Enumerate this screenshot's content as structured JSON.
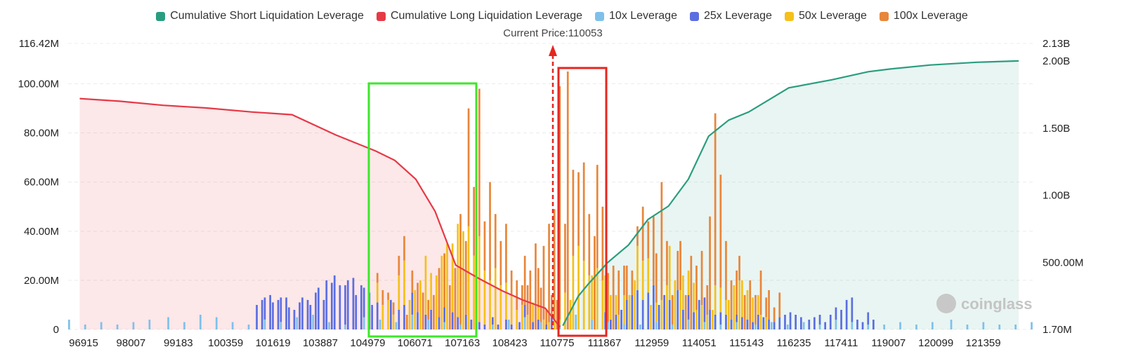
{
  "legend": [
    {
      "label": "Cumulative Short Liquidation Leverage",
      "color": "#2a9d7f"
    },
    {
      "label": "Cumulative Long Liquidation Leverage",
      "color": "#e63946"
    },
    {
      "label": "10x Leverage",
      "color": "#7fc0ea"
    },
    {
      "label": "25x Leverage",
      "color": "#5b6ee1"
    },
    {
      "label": "50x Leverage",
      "color": "#f5c01a"
    },
    {
      "label": "100x Leverage",
      "color": "#e8863a"
    }
  ],
  "watermark": "coinglass",
  "chart_data": {
    "type": "bar",
    "current_price_label": "Current Price:110053",
    "current_price": 110053,
    "x_ticks": [
      "96915",
      "98007",
      "99183",
      "100359",
      "101619",
      "103887",
      "104979",
      "106071",
      "107163",
      "108423",
      "110775",
      "111867",
      "112959",
      "114051",
      "115143",
      "116235",
      "117411",
      "119007",
      "120099",
      "121359"
    ],
    "y_left": {
      "ticks": [
        "0",
        "20.00M",
        "40.00M",
        "60.00M",
        "80.00M",
        "100.00M",
        "116.42M"
      ],
      "range": [
        0,
        116.42
      ]
    },
    "y_right": {
      "ticks": [
        "1.70M",
        "500.00M",
        "1.00B",
        "1.50B",
        "2.00B",
        "2.13B"
      ],
      "range": [
        0.0017,
        2.13
      ]
    },
    "bars_10x": [
      4,
      2,
      3,
      2,
      3,
      4,
      5,
      3,
      6,
      5,
      3,
      2,
      4,
      3,
      5,
      6,
      3,
      2,
      5,
      4,
      3,
      6,
      4,
      3,
      2,
      3,
      2,
      4,
      5,
      3,
      2,
      6,
      4,
      3,
      2,
      2,
      3,
      2,
      4,
      3,
      2,
      3,
      2,
      3,
      2,
      3,
      2,
      4,
      3,
      2,
      2,
      3,
      2,
      3,
      4,
      2,
      3,
      2,
      2,
      3
    ],
    "bars_25x": [
      10,
      12,
      9,
      14,
      11,
      12,
      10,
      13,
      9,
      8,
      11,
      13,
      12,
      10,
      15,
      17,
      12,
      20,
      19,
      22,
      18,
      16,
      20,
      21,
      14,
      18,
      12,
      15,
      10,
      11,
      12,
      8,
      10,
      9,
      7,
      6,
      8,
      5,
      6,
      7,
      5,
      6,
      4,
      3,
      2,
      3,
      2,
      4,
      2,
      3,
      5,
      3,
      4,
      2,
      5,
      7,
      4,
      6,
      8,
      12,
      14,
      16,
      12,
      15,
      18,
      10,
      14,
      12,
      16,
      8,
      10,
      7,
      12,
      10,
      8,
      6,
      5,
      6,
      4,
      3,
      5,
      4,
      3,
      6,
      5,
      4,
      3,
      5,
      6,
      7,
      6,
      5,
      4,
      5,
      4,
      3,
      6,
      5,
      8,
      12,
      10,
      4,
      3,
      5,
      4
    ],
    "bars_50x": [
      8,
      10,
      12,
      6,
      14,
      18,
      12,
      16,
      20,
      24,
      15,
      22,
      30,
      35,
      28,
      38,
      40,
      42,
      30,
      35,
      22,
      20,
      25,
      18,
      15,
      12,
      8,
      10,
      6,
      8,
      5,
      4,
      3,
      4,
      2,
      5,
      10,
      12,
      30,
      34,
      28,
      22,
      18,
      25,
      20,
      15,
      10,
      8,
      6,
      12,
      14,
      20,
      18,
      16,
      14,
      10,
      8,
      12,
      18,
      22,
      20,
      16,
      14,
      10,
      12,
      8,
      10,
      6,
      8,
      12,
      10,
      6,
      12,
      18,
      20,
      15,
      12,
      10,
      8,
      6,
      5
    ],
    "bars_100x": [
      4,
      6,
      3,
      5,
      8,
      10,
      6,
      9,
      12,
      15,
      8,
      14,
      20,
      22,
      18,
      25,
      45,
      30,
      48,
      28,
      60,
      20,
      40,
      22,
      18,
      24,
      10,
      12,
      8,
      12,
      16,
      10,
      14,
      6,
      9,
      12,
      20,
      8,
      25,
      16,
      30,
      40,
      45,
      95,
      28,
      105,
      35,
      30,
      40,
      25,
      38,
      42,
      30,
      20,
      26,
      18,
      12,
      14,
      10,
      8,
      22,
      15,
      28,
      20,
      48,
      18,
      12,
      16,
      20,
      14,
      30,
      18,
      22,
      12,
      38,
      70,
      46,
      24,
      16,
      18,
      10,
      14,
      20,
      12,
      18,
      8,
      12,
      6,
      10
    ],
    "cumulative_long": {
      "x": [
        96915,
        98007,
        99183,
        100359,
        101619,
        102700,
        103887,
        104979,
        105500,
        106071,
        106600,
        107163,
        107800,
        108423,
        109000,
        109600,
        110000
      ],
      "y": [
        1.72,
        1.7,
        1.67,
        1.65,
        1.62,
        1.6,
        1.45,
        1.33,
        1.26,
        1.12,
        0.88,
        0.48,
        0.38,
        0.29,
        0.22,
        0.16,
        0.02
      ]
    },
    "cumulative_short": {
      "x": [
        110080,
        110500,
        110775,
        111300,
        111867,
        112400,
        112959,
        113500,
        114051,
        114600,
        115143,
        116235,
        117411,
        118400,
        119007,
        120099,
        121359,
        122500
      ],
      "y": [
        0.03,
        0.25,
        0.34,
        0.5,
        0.63,
        0.82,
        0.92,
        1.12,
        1.44,
        1.56,
        1.62,
        1.8,
        1.86,
        1.92,
        1.94,
        1.97,
        1.99,
        2.0
      ]
    }
  }
}
